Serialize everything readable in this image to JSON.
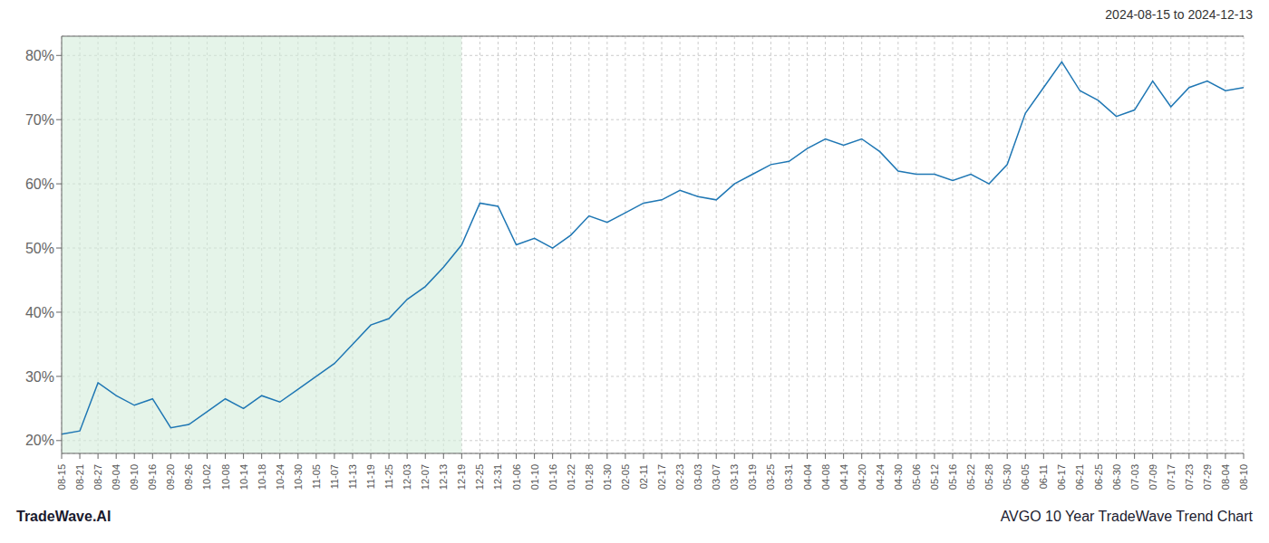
{
  "chart_data": {
    "type": "line",
    "title": "AVGO 10 Year TradeWave Trend Chart",
    "subtitle": "2024-08-15 to 2024-12-13",
    "annotations": [
      "TradeWave.AI"
    ],
    "categories": [
      "08-15",
      "08-21",
      "08-27",
      "09-04",
      "09-10",
      "09-16",
      "09-20",
      "09-26",
      "10-02",
      "10-08",
      "10-14",
      "10-18",
      "10-24",
      "10-30",
      "11-05",
      "11-07",
      "11-13",
      "11-19",
      "11-25",
      "12-03",
      "12-07",
      "12-13",
      "12-19",
      "12-25",
      "12-31",
      "01-06",
      "01-10",
      "01-16",
      "01-22",
      "01-28",
      "01-30",
      "02-05",
      "02-11",
      "02-17",
      "02-23",
      "03-03",
      "03-07",
      "03-13",
      "03-19",
      "03-25",
      "03-31",
      "04-04",
      "04-08",
      "04-14",
      "04-20",
      "04-24",
      "04-30",
      "05-06",
      "05-12",
      "05-16",
      "05-22",
      "05-28",
      "05-30",
      "06-05",
      "06-11",
      "06-17",
      "06-21",
      "06-25",
      "06-30",
      "07-03",
      "07-09",
      "07-17",
      "07-23",
      "07-29",
      "08-04",
      "08-10"
    ],
    "values": [
      21.0,
      21.5,
      29.0,
      27.0,
      25.5,
      26.5,
      22.0,
      22.5,
      24.5,
      26.5,
      25.0,
      27.0,
      26.0,
      28.0,
      30.0,
      32.0,
      35.0,
      38.0,
      39.0,
      42.0,
      44.0,
      47.0,
      50.5,
      57.0,
      56.5,
      50.5,
      51.5,
      50.0,
      52.0,
      55.0,
      54.0,
      55.5,
      57.0,
      57.5,
      59.0,
      58.0,
      57.5,
      60.0,
      61.5,
      63.0,
      63.5,
      65.5,
      67.0,
      66.0,
      67.0,
      65.0,
      62.0,
      61.5,
      61.5,
      60.5,
      61.5,
      60.0,
      63.0,
      71.0,
      75.0,
      79.0,
      74.5,
      73.0,
      70.5,
      71.5,
      76.0,
      72.0,
      75.0,
      76.0,
      74.5,
      75.0
    ],
    "color": "#1f77b4",
    "shaded_region": {
      "from": "08-15",
      "to": "12-19",
      "color": "#d4edda"
    },
    "ylim": [
      18,
      83
    ],
    "yticks": [
      {
        "value": 20,
        "label": "20%"
      },
      {
        "value": 30,
        "label": "30%"
      },
      {
        "value": 40,
        "label": "40%"
      },
      {
        "value": 50,
        "label": "50%"
      },
      {
        "value": 60,
        "label": "60%"
      },
      {
        "value": 70,
        "label": "70%"
      },
      {
        "value": 80,
        "label": "80%"
      }
    ],
    "grid": true
  }
}
